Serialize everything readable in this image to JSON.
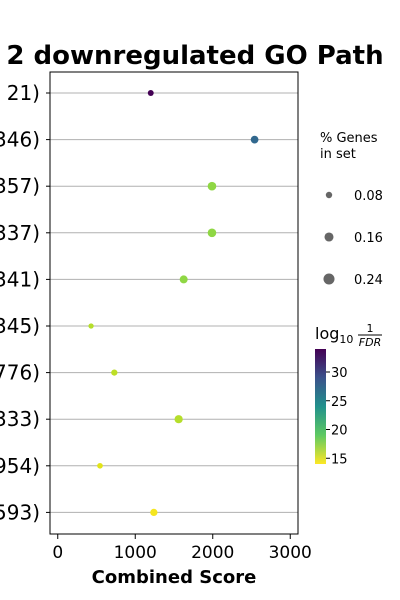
{
  "chart_data": {
    "type": "scatter",
    "title": "2 downregulated GO Path",
    "xlabel": "Combined Score",
    "ylabel": "",
    "xlim": [
      -100,
      3100
    ],
    "xticks": [
      0,
      1000,
      2000,
      3000
    ],
    "grid": "horizontal",
    "categories": [
      "21)",
      "346)",
      "357)",
      "337)",
      "341)",
      "345)",
      "776)",
      "333)",
      "954)",
      "593)"
    ],
    "x": [
      1200,
      2540,
      1990,
      1990,
      1625,
      430,
      730,
      1560,
      545,
      1240
    ],
    "pct_genes": [
      0.1,
      0.17,
      0.21,
      0.21,
      0.18,
      0.08,
      0.11,
      0.19,
      0.09,
      0.15
    ],
    "log10_inv_fdr": [
      33.0,
      28.5,
      18.5,
      18.5,
      18.8,
      16.8,
      16.3,
      16.6,
      15.0,
      14.5
    ],
    "colors": [
      "#440154",
      "#31688e",
      "#8fd744",
      "#8fd744",
      "#8fd744",
      "#b5de2b",
      "#bddf26",
      "#b5de2b",
      "#e2e418",
      "#f5e61f"
    ],
    "size_legend": {
      "title_line1": "% Genes",
      "title_line2": "in set",
      "entries": [
        {
          "label": "0.08",
          "value": 0.08
        },
        {
          "label": "0.16",
          "value": 0.16
        },
        {
          "label": "0.24",
          "value": 0.24
        }
      ]
    },
    "colorbar": {
      "title_base": "log",
      "title_sub": "10",
      "title_num": "1",
      "title_den": "FDR",
      "range": [
        14,
        34
      ],
      "ticks": [
        {
          "label": "15",
          "value": 15
        },
        {
          "label": "20",
          "value": 20
        },
        {
          "label": "25",
          "value": 25
        },
        {
          "label": "30",
          "value": 30
        }
      ]
    },
    "marker_color": "#666666"
  }
}
